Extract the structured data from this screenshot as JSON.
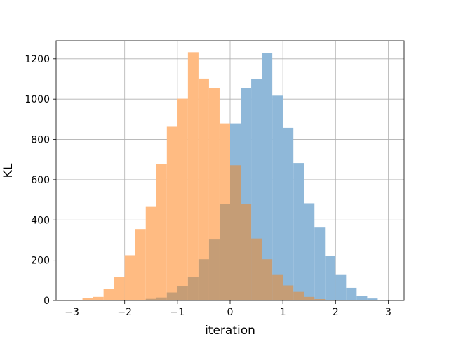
{
  "chart_data": {
    "type": "histogram",
    "title": "",
    "xlabel": "iteration",
    "ylabel": "KL",
    "xlim": [
      -3.3,
      3.3
    ],
    "ylim": [
      0,
      1290
    ],
    "grid": true,
    "xticks": [
      -3,
      -2,
      -1,
      0,
      1,
      2,
      3
    ],
    "yticks": [
      0,
      200,
      400,
      600,
      800,
      1000,
      1200
    ],
    "bin_width": 0.2,
    "series": [
      {
        "color": "#ffbb82",
        "opacity": 1,
        "bins": [
          {
            "x0": -2.8,
            "value": 12
          },
          {
            "x0": -2.6,
            "value": 18
          },
          {
            "x0": -2.4,
            "value": 58
          },
          {
            "x0": -2.2,
            "value": 118
          },
          {
            "x0": -2.0,
            "value": 225
          },
          {
            "x0": -1.8,
            "value": 355
          },
          {
            "x0": -1.6,
            "value": 465
          },
          {
            "x0": -1.4,
            "value": 678
          },
          {
            "x0": -1.2,
            "value": 863
          },
          {
            "x0": -1.0,
            "value": 1002
          },
          {
            "x0": -0.8,
            "value": 1233
          },
          {
            "x0": -0.6,
            "value": 1102
          },
          {
            "x0": -0.4,
            "value": 1053
          },
          {
            "x0": -0.2,
            "value": 880
          }
        ]
      },
      {
        "color": "#8fb8d9",
        "opacity": 1,
        "bins": [
          {
            "x0": 0.0,
            "value": 880
          },
          {
            "x0": 0.2,
            "value": 1053
          },
          {
            "x0": 0.4,
            "value": 1100
          },
          {
            "x0": 0.6,
            "value": 1228
          },
          {
            "x0": 0.8,
            "value": 1017
          },
          {
            "x0": 1.0,
            "value": 858
          },
          {
            "x0": 1.2,
            "value": 683
          },
          {
            "x0": 1.4,
            "value": 483
          },
          {
            "x0": 1.6,
            "value": 362
          },
          {
            "x0": 1.8,
            "value": 223
          },
          {
            "x0": 2.0,
            "value": 130
          },
          {
            "x0": 2.2,
            "value": 63
          },
          {
            "x0": 2.4,
            "value": 23
          },
          {
            "x0": 2.6,
            "value": 10
          }
        ]
      },
      {
        "color": "#c59d76",
        "opacity": 1,
        "bins": [
          {
            "x0": -1.8,
            "value": 2
          },
          {
            "x0": -1.6,
            "value": 8
          },
          {
            "x0": -1.4,
            "value": 15
          },
          {
            "x0": -1.2,
            "value": 40
          },
          {
            "x0": -1.0,
            "value": 72
          },
          {
            "x0": -0.8,
            "value": 118
          },
          {
            "x0": -0.6,
            "value": 205
          },
          {
            "x0": -0.4,
            "value": 303
          },
          {
            "x0": -0.2,
            "value": 478
          },
          {
            "x0": -0.0,
            "value": 648
          },
          {
            "x0": 0.0,
            "value": 672
          },
          {
            "x0": 0.2,
            "value": 478
          },
          {
            "x0": 0.4,
            "value": 308
          },
          {
            "x0": 0.6,
            "value": 205
          },
          {
            "x0": 0.8,
            "value": 130
          },
          {
            "x0": 1.0,
            "value": 75
          },
          {
            "x0": 1.2,
            "value": 43
          },
          {
            "x0": 1.4,
            "value": 18
          },
          {
            "x0": 1.6,
            "value": 7
          }
        ]
      }
    ]
  }
}
